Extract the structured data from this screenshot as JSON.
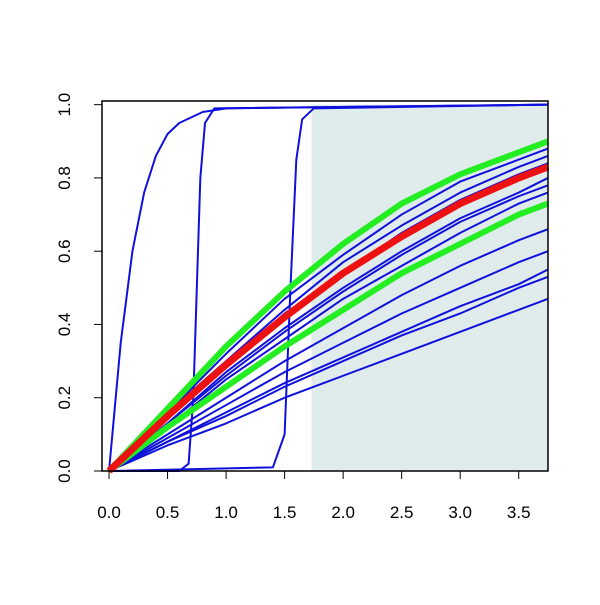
{
  "chart_data": {
    "type": "line",
    "xlim": [
      -0.06,
      3.75
    ],
    "ylim": [
      0,
      1.01
    ],
    "xticks": [
      {
        "value": 0,
        "label": "0.0"
      },
      {
        "value": 0.5,
        "label": "0.5"
      },
      {
        "value": 1,
        "label": "1.0"
      },
      {
        "value": 1.5,
        "label": "1.5"
      },
      {
        "value": 2,
        "label": "2.0"
      },
      {
        "value": 2.5,
        "label": "2.5"
      },
      {
        "value": 3,
        "label": "3.0"
      },
      {
        "value": 3.5,
        "label": "3.5"
      }
    ],
    "yticks": [
      {
        "value": 0,
        "label": "0.0"
      },
      {
        "value": 0.2,
        "label": "0.2"
      },
      {
        "value": 0.4,
        "label": "0.4"
      },
      {
        "value": 0.6,
        "label": "0.6"
      },
      {
        "value": 0.8,
        "label": "0.8"
      },
      {
        "value": 1,
        "label": "1.0"
      }
    ],
    "shaded_region": {
      "x": [
        1.73,
        3.75
      ],
      "y": [
        0,
        1
      ],
      "color": "#e0ecec"
    },
    "series": [
      {
        "color": "#1010dd",
        "line_width": 2,
        "x": [
          0,
          0.1,
          0.2,
          0.3,
          0.4,
          0.5,
          0.6,
          0.8,
          1.0,
          3.75
        ],
        "values": [
          0,
          0.35,
          0.6,
          0.76,
          0.86,
          0.92,
          0.95,
          0.98,
          0.99,
          1.0
        ]
      },
      {
        "color": "#1010dd",
        "line_width": 2,
        "x": [
          0,
          0.6,
          0.68,
          0.72,
          0.75,
          0.78,
          0.82,
          0.9,
          3.75
        ],
        "values": [
          0,
          0,
          0.02,
          0.2,
          0.5,
          0.8,
          0.95,
          0.99,
          1
        ]
      },
      {
        "color": "#1010dd",
        "line_width": 2,
        "x": [
          0,
          1.4,
          1.5,
          1.55,
          1.6,
          1.65,
          1.75,
          3.75
        ],
        "values": [
          0,
          0.01,
          0.1,
          0.5,
          0.85,
          0.96,
          0.99,
          1
        ]
      },
      {
        "color": "#1010dd",
        "line_width": 2,
        "x": [
          0,
          0.5,
          1,
          1.5,
          2,
          2.5,
          3,
          3.5,
          3.75
        ],
        "values": [
          0,
          0.16,
          0.32,
          0.47,
          0.59,
          0.7,
          0.79,
          0.85,
          0.88
        ]
      },
      {
        "color": "#1010dd",
        "line_width": 2,
        "x": [
          0,
          0.5,
          1,
          1.5,
          2,
          2.5,
          3,
          3.5,
          3.75
        ],
        "values": [
          0,
          0.16,
          0.3,
          0.44,
          0.57,
          0.67,
          0.76,
          0.83,
          0.86
        ]
      },
      {
        "color": "#1010dd",
        "line_width": 2,
        "x": [
          0,
          0.5,
          1,
          1.5,
          2,
          2.5,
          3,
          3.5,
          3.75
        ],
        "values": [
          0,
          0.15,
          0.29,
          0.43,
          0.54,
          0.65,
          0.74,
          0.81,
          0.84
        ]
      },
      {
        "color": "#1010dd",
        "line_width": 2,
        "x": [
          0,
          0.5,
          1,
          1.5,
          2,
          2.5,
          3,
          3.5,
          3.75
        ],
        "values": [
          0,
          0.13,
          0.27,
          0.39,
          0.5,
          0.6,
          0.69,
          0.76,
          0.8
        ]
      },
      {
        "color": "#1010dd",
        "line_width": 2,
        "x": [
          0,
          0.5,
          1,
          1.5,
          2,
          2.5,
          3,
          3.5,
          3.75
        ],
        "values": [
          0,
          0.13,
          0.26,
          0.38,
          0.49,
          0.59,
          0.68,
          0.75,
          0.78
        ]
      },
      {
        "color": "#1010dd",
        "line_width": 2,
        "x": [
          0,
          0.5,
          1,
          1.5,
          2,
          2.5,
          3,
          3.5,
          3.75
        ],
        "values": [
          0,
          0.12,
          0.25,
          0.36,
          0.47,
          0.56,
          0.65,
          0.73,
          0.76
        ]
      },
      {
        "color": "#1010dd",
        "line_width": 2,
        "x": [
          0,
          0.5,
          1,
          1.5,
          2,
          2.5,
          3,
          3.5,
          3.75
        ],
        "values": [
          0,
          0.1,
          0.2,
          0.3,
          0.39,
          0.48,
          0.56,
          0.63,
          0.66
        ]
      },
      {
        "color": "#1010dd",
        "line_width": 2,
        "x": [
          0,
          0.5,
          1,
          1.5,
          2,
          2.5,
          3,
          3.5,
          3.75
        ],
        "values": [
          0,
          0.09,
          0.18,
          0.27,
          0.35,
          0.43,
          0.5,
          0.57,
          0.6
        ]
      },
      {
        "color": "#1010dd",
        "line_width": 2,
        "x": [
          0,
          0.5,
          1,
          1.5,
          2,
          2.5,
          3,
          3.5,
          3.75
        ],
        "values": [
          0,
          0.08,
          0.16,
          0.24,
          0.31,
          0.38,
          0.45,
          0.51,
          0.55
        ]
      },
      {
        "color": "#1010dd",
        "line_width": 2,
        "x": [
          0,
          0.5,
          1,
          1.5,
          2,
          2.5,
          3,
          3.5,
          3.75
        ],
        "values": [
          0,
          0.08,
          0.15,
          0.23,
          0.3,
          0.37,
          0.43,
          0.5,
          0.53
        ]
      },
      {
        "color": "#1010dd",
        "line_width": 2,
        "x": [
          0,
          0.5,
          1,
          1.5,
          2,
          2.5,
          3,
          3.5,
          3.75
        ],
        "values": [
          0,
          0.07,
          0.13,
          0.2,
          0.26,
          0.32,
          0.38,
          0.44,
          0.47
        ]
      },
      {
        "color": "#22ee22",
        "line_width": 6,
        "x": [
          0,
          0.5,
          1,
          1.5,
          2,
          2.5,
          3,
          3.5,
          3.75
        ],
        "values": [
          0,
          0.17,
          0.34,
          0.49,
          0.62,
          0.73,
          0.81,
          0.87,
          0.9
        ]
      },
      {
        "color": "#22ee22",
        "line_width": 6,
        "x": [
          0,
          0.5,
          1,
          1.5,
          2,
          2.5,
          3,
          3.5,
          3.75
        ],
        "values": [
          0,
          0.12,
          0.23,
          0.34,
          0.44,
          0.54,
          0.62,
          0.7,
          0.73
        ]
      },
      {
        "color": "#ee1111",
        "line_width": 7,
        "x": [
          0,
          0.5,
          1,
          1.5,
          2,
          2.5,
          3,
          3.5,
          3.75
        ],
        "values": [
          0,
          0.15,
          0.29,
          0.42,
          0.54,
          0.64,
          0.73,
          0.8,
          0.83
        ]
      }
    ]
  }
}
